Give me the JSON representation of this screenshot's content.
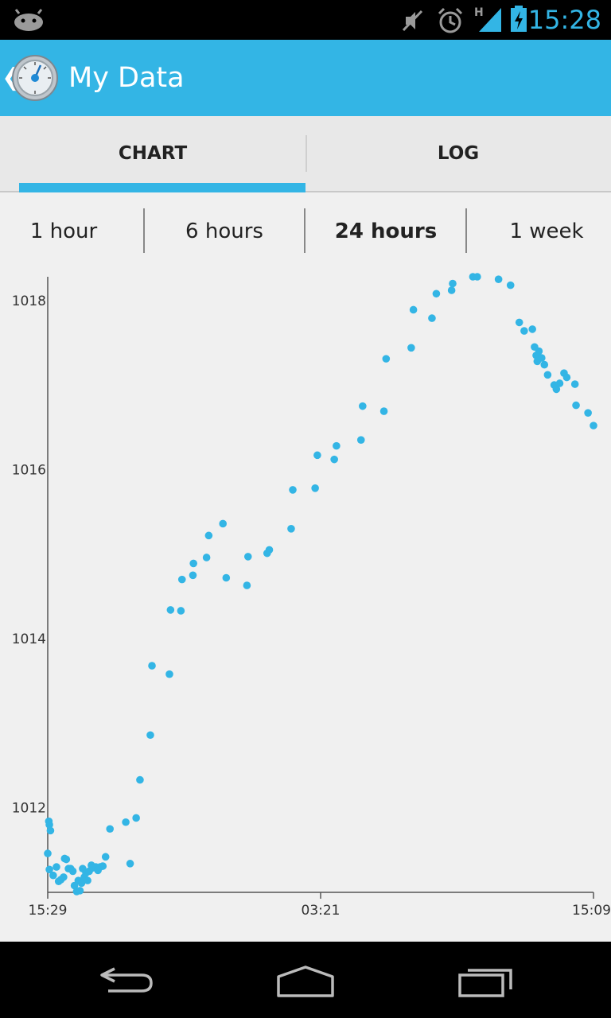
{
  "status_bar": {
    "time": "15:28",
    "icons": [
      "android-notification-icon",
      "mute-icon",
      "alarm-icon",
      "signal-h-icon",
      "battery-charging-icon"
    ],
    "accent": "#33b5e5"
  },
  "action_bar": {
    "title": "My Data",
    "color": "#33b5e5"
  },
  "tabs": [
    {
      "label": "CHART",
      "selected": true
    },
    {
      "label": "LOG",
      "selected": false
    }
  ],
  "ranges": [
    {
      "label": "1 hour",
      "selected": false
    },
    {
      "label": "6 hours",
      "selected": false
    },
    {
      "label": "24 hours",
      "selected": true
    },
    {
      "label": "1 week",
      "selected": false
    }
  ],
  "chart_data": {
    "type": "scatter",
    "title": "",
    "xlabel": "",
    "ylabel": "",
    "color": "#33b5e5",
    "x_ticks": [
      "15:29",
      "03:21",
      "15:09"
    ],
    "y_ticks": [
      1012,
      1014,
      1016,
      1018
    ],
    "ylim": [
      1011.0,
      1018.28
    ],
    "xlim": [
      0,
      1
    ],
    "grid": false,
    "points": [
      [
        0.0,
        1011.46
      ],
      [
        0.003,
        1011.8
      ],
      [
        0.005,
        1011.73
      ],
      [
        0.002,
        1011.84
      ],
      [
        0.003,
        1011.27
      ],
      [
        0.01,
        1011.2
      ],
      [
        0.016,
        1011.3
      ],
      [
        0.02,
        1011.13
      ],
      [
        0.024,
        1011.15
      ],
      [
        0.029,
        1011.18
      ],
      [
        0.031,
        1011.4
      ],
      [
        0.034,
        1011.39
      ],
      [
        0.038,
        1011.28
      ],
      [
        0.042,
        1011.28
      ],
      [
        0.046,
        1011.25
      ],
      [
        0.049,
        1011.08
      ],
      [
        0.053,
        1011.01
      ],
      [
        0.056,
        1011.14
      ],
      [
        0.059,
        1011.02
      ],
      [
        0.062,
        1011.11
      ],
      [
        0.064,
        1011.28
      ],
      [
        0.067,
        1011.18
      ],
      [
        0.07,
        1011.23
      ],
      [
        0.073,
        1011.14
      ],
      [
        0.076,
        1011.25
      ],
      [
        0.08,
        1011.32
      ],
      [
        0.083,
        1011.29
      ],
      [
        0.088,
        1011.3
      ],
      [
        0.092,
        1011.26
      ],
      [
        0.096,
        1011.3
      ],
      [
        0.101,
        1011.31
      ],
      [
        0.106,
        1011.42
      ],
      [
        0.114,
        1011.75
      ],
      [
        0.151,
        1011.34
      ],
      [
        0.143,
        1011.83
      ],
      [
        0.162,
        1011.88
      ],
      [
        0.169,
        1012.33
      ],
      [
        0.188,
        1012.86
      ],
      [
        0.191,
        1013.68
      ],
      [
        0.223,
        1013.58
      ],
      [
        0.225,
        1014.34
      ],
      [
        0.244,
        1014.33
      ],
      [
        0.246,
        1014.7
      ],
      [
        0.266,
        1014.75
      ],
      [
        0.267,
        1014.89
      ],
      [
        0.291,
        1014.96
      ],
      [
        0.295,
        1015.22
      ],
      [
        0.321,
        1015.36
      ],
      [
        0.327,
        1014.72
      ],
      [
        0.365,
        1014.63
      ],
      [
        0.367,
        1014.97
      ],
      [
        0.402,
        1015.01
      ],
      [
        0.406,
        1015.05
      ],
      [
        0.446,
        1015.3
      ],
      [
        0.449,
        1015.76
      ],
      [
        0.49,
        1015.78
      ],
      [
        0.494,
        1016.17
      ],
      [
        0.525,
        1016.12
      ],
      [
        0.529,
        1016.28
      ],
      [
        0.574,
        1016.35
      ],
      [
        0.577,
        1016.75
      ],
      [
        0.616,
        1016.69
      ],
      [
        0.62,
        1017.31
      ],
      [
        0.666,
        1017.44
      ],
      [
        0.67,
        1017.89
      ],
      [
        0.704,
        1017.79
      ],
      [
        0.712,
        1018.08
      ],
      [
        0.74,
        1018.12
      ],
      [
        0.742,
        1018.2
      ],
      [
        0.779,
        1018.28
      ],
      [
        0.787,
        1018.28
      ],
      [
        0.826,
        1018.25
      ],
      [
        0.848,
        1018.18
      ],
      [
        0.864,
        1017.74
      ],
      [
        0.873,
        1017.64
      ],
      [
        0.888,
        1017.66
      ],
      [
        0.892,
        1017.45
      ],
      [
        0.895,
        1017.35
      ],
      [
        0.897,
        1017.28
      ],
      [
        0.9,
        1017.4
      ],
      [
        0.905,
        1017.32
      ],
      [
        0.91,
        1017.24
      ],
      [
        0.916,
        1017.12
      ],
      [
        0.928,
        1017.0
      ],
      [
        0.932,
        1016.95
      ],
      [
        0.938,
        1017.02
      ],
      [
        0.946,
        1017.14
      ],
      [
        0.951,
        1017.09
      ],
      [
        0.966,
        1017.01
      ],
      [
        0.968,
        1016.76
      ],
      [
        0.99,
        1016.67
      ],
      [
        1.0,
        1016.52
      ]
    ]
  },
  "nav_bar": {
    "buttons": [
      "back-icon",
      "home-icon",
      "recents-icon"
    ]
  }
}
